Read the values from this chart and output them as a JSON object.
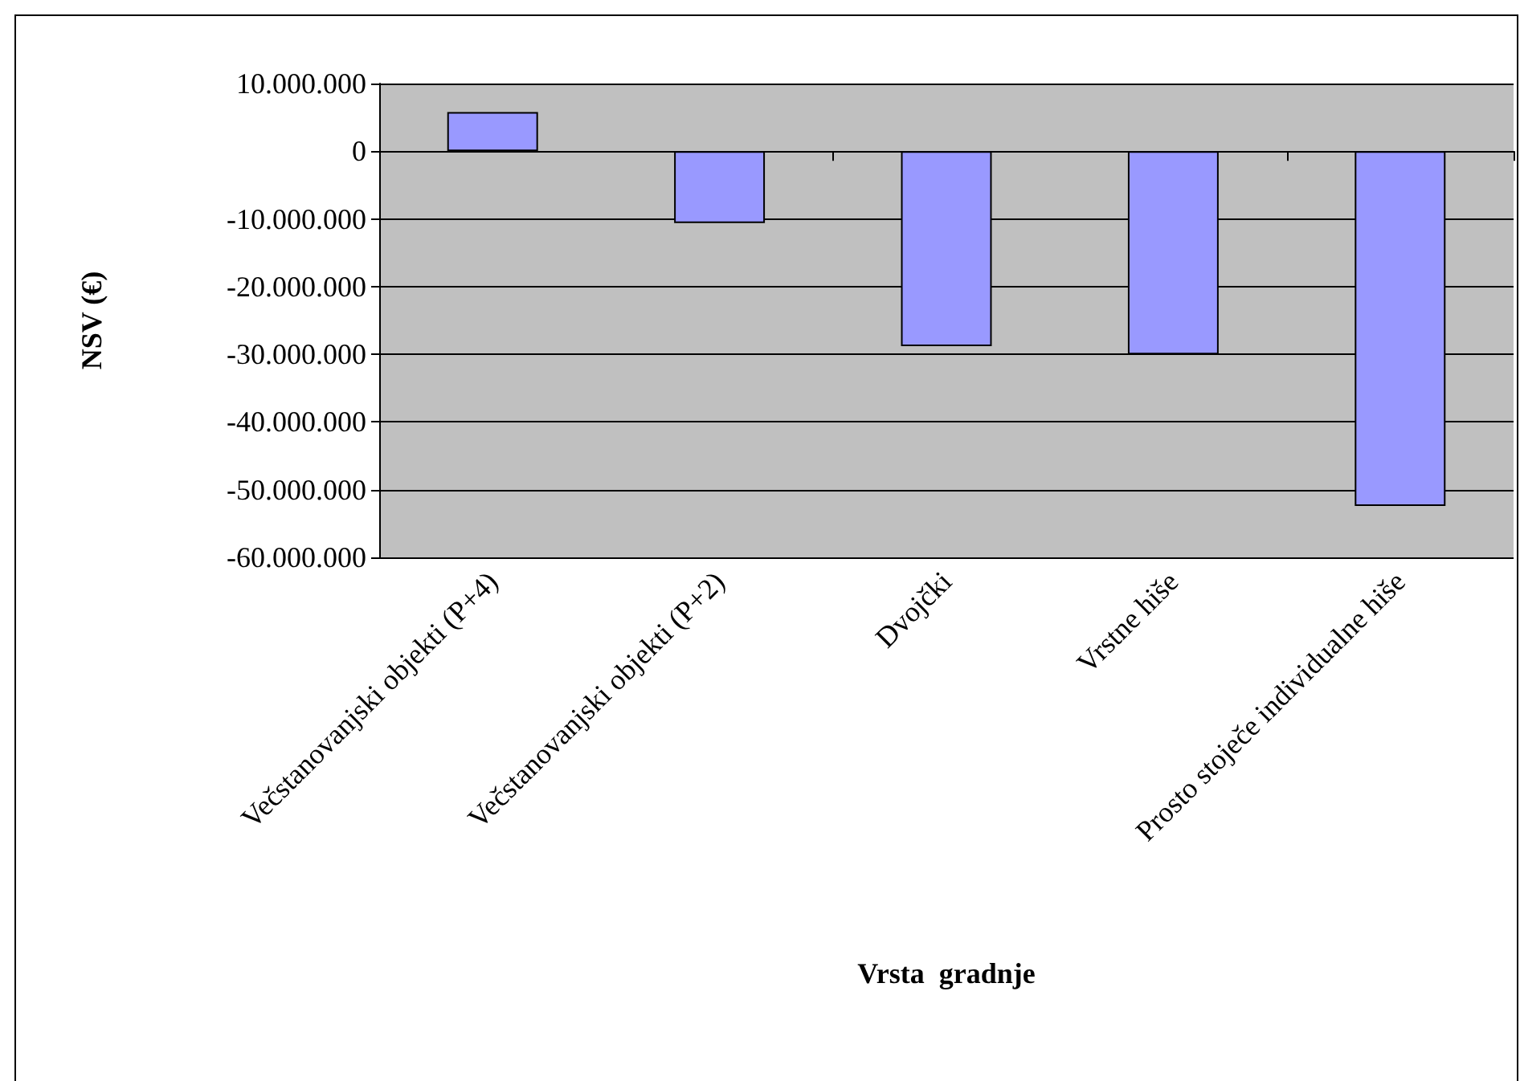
{
  "chart_data": {
    "type": "bar",
    "xlabel": "Vrsta  gradnje",
    "ylabel": "NSV (€)",
    "categories": [
      "Večstanovanjski objekti (P+4)",
      "Večstanovanjski objekti (P+2)",
      "Dvojčki",
      "Vrstne hiše",
      "Prosto stoječe individualne hiše"
    ],
    "values": [
      5800000,
      -10600000,
      -28800000,
      -30000000,
      -52400000
    ],
    "color": "#9999ff",
    "ylim": [
      -60000000,
      10000000
    ],
    "yticks": [
      {
        "value": -60000000,
        "label": "-60.000.000"
      },
      {
        "value": -50000000,
        "label": "-50.000.000"
      },
      {
        "value": -40000000,
        "label": "-40.000.000"
      },
      {
        "value": -30000000,
        "label": "-30.000.000"
      },
      {
        "value": -20000000,
        "label": "-20.000.000"
      },
      {
        "value": -10000000,
        "label": "-10.000.000"
      },
      0,
      {
        "value": 10000000,
        "label": "10.000.000"
      }
    ],
    "grid": "y"
  }
}
